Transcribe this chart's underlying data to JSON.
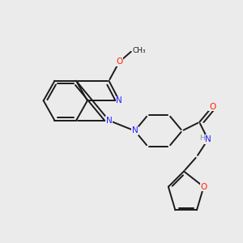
{
  "bg_color": "#ebebeb",
  "bond_color": "#1a1a1a",
  "N_color": "#2020ff",
  "O_color": "#ff2200",
  "H_color": "#7a9a9a",
  "lw": 1.4,
  "dbo": 0.018,
  "figsize": [
    3.0,
    3.0
  ],
  "dpi": 100,
  "xlim": [
    0.0,
    10.0
  ],
  "ylim": [
    0.0,
    10.0
  ]
}
